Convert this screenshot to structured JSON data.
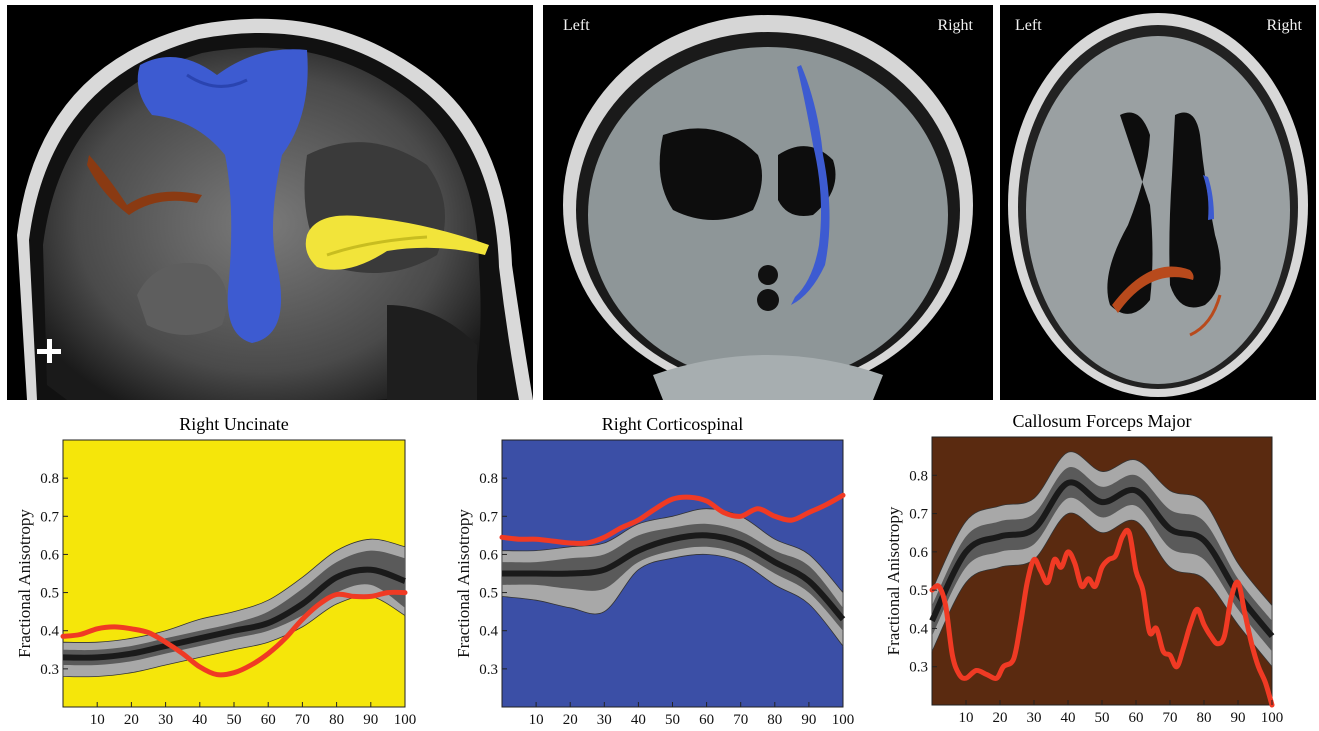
{
  "images": [
    {
      "left_label": "",
      "right_label": ""
    },
    {
      "left_label": "Left",
      "right_label": "Right"
    },
    {
      "left_label": "Left",
      "right_label": "Right"
    }
  ],
  "colors": {
    "uncinate_bg": "#f5e60a",
    "corticospinal_bg": "#3b4fa6",
    "forceps_bg": "#5a2a10",
    "subject_line": "#f03a24",
    "band_outer": "#a8a8a8",
    "band_inner": "#5a5a5a",
    "mean_line": "#1a1a1a"
  },
  "chart_data": [
    {
      "type": "line",
      "title": "Right Uncinate",
      "ylabel": "Fractional Anisotropy",
      "xlabel": "",
      "xlim": [
        0,
        100
      ],
      "ylim": [
        0.2,
        0.9
      ],
      "xticks": [
        10,
        20,
        30,
        40,
        50,
        60,
        70,
        80,
        90,
        100
      ],
      "yticks": [
        0.3,
        0.4,
        0.5,
        0.6,
        0.7,
        0.8
      ],
      "x": [
        0,
        10,
        20,
        30,
        40,
        50,
        60,
        70,
        80,
        90,
        100
      ],
      "mean": [
        0.33,
        0.33,
        0.34,
        0.36,
        0.38,
        0.4,
        0.42,
        0.47,
        0.54,
        0.56,
        0.53
      ],
      "inner_band": [
        [
          0.31,
          0.35
        ],
        [
          0.31,
          0.35
        ],
        [
          0.32,
          0.36
        ],
        [
          0.34,
          0.38
        ],
        [
          0.36,
          0.4
        ],
        [
          0.38,
          0.42
        ],
        [
          0.4,
          0.45
        ],
        [
          0.44,
          0.51
        ],
        [
          0.5,
          0.58
        ],
        [
          0.52,
          0.61
        ],
        [
          0.46,
          0.59
        ]
      ],
      "outer_band": [
        [
          0.28,
          0.37
        ],
        [
          0.28,
          0.37
        ],
        [
          0.29,
          0.38
        ],
        [
          0.31,
          0.4
        ],
        [
          0.33,
          0.43
        ],
        [
          0.35,
          0.45
        ],
        [
          0.37,
          0.48
        ],
        [
          0.41,
          0.54
        ],
        [
          0.47,
          0.61
        ],
        [
          0.49,
          0.64
        ],
        [
          0.44,
          0.62
        ]
      ],
      "subject": [
        [
          0,
          0.385
        ],
        [
          5,
          0.39
        ],
        [
          10,
          0.405
        ],
        [
          15,
          0.41
        ],
        [
          20,
          0.405
        ],
        [
          25,
          0.395
        ],
        [
          30,
          0.37
        ],
        [
          35,
          0.34
        ],
        [
          40,
          0.305
        ],
        [
          45,
          0.285
        ],
        [
          50,
          0.29
        ],
        [
          55,
          0.31
        ],
        [
          60,
          0.34
        ],
        [
          65,
          0.38
        ],
        [
          70,
          0.43
        ],
        [
          75,
          0.47
        ],
        [
          80,
          0.495
        ],
        [
          85,
          0.49
        ],
        [
          90,
          0.49
        ],
        [
          95,
          0.5
        ],
        [
          100,
          0.5
        ]
      ]
    },
    {
      "type": "line",
      "title": "Right Corticospinal",
      "ylabel": "Fractional Anisotropy",
      "xlabel": "",
      "xlim": [
        0,
        100
      ],
      "ylim": [
        0.2,
        0.9
      ],
      "xticks": [
        10,
        20,
        30,
        40,
        50,
        60,
        70,
        80,
        90,
        100
      ],
      "yticks": [
        0.3,
        0.4,
        0.5,
        0.6,
        0.7,
        0.8
      ],
      "x": [
        0,
        10,
        20,
        30,
        40,
        50,
        60,
        70,
        80,
        90,
        100
      ],
      "mean": [
        0.55,
        0.55,
        0.55,
        0.56,
        0.61,
        0.64,
        0.65,
        0.63,
        0.58,
        0.53,
        0.43
      ],
      "inner_band": [
        [
          0.52,
          0.58
        ],
        [
          0.52,
          0.58
        ],
        [
          0.51,
          0.59
        ],
        [
          0.51,
          0.6
        ],
        [
          0.58,
          0.65
        ],
        [
          0.61,
          0.67
        ],
        [
          0.62,
          0.68
        ],
        [
          0.6,
          0.66
        ],
        [
          0.55,
          0.61
        ],
        [
          0.5,
          0.57
        ],
        [
          0.4,
          0.46
        ]
      ],
      "outer_band": [
        [
          0.49,
          0.61
        ],
        [
          0.48,
          0.61
        ],
        [
          0.46,
          0.62
        ],
        [
          0.45,
          0.63
        ],
        [
          0.56,
          0.68
        ],
        [
          0.59,
          0.7
        ],
        [
          0.6,
          0.72
        ],
        [
          0.58,
          0.7
        ],
        [
          0.52,
          0.64
        ],
        [
          0.47,
          0.6
        ],
        [
          0.36,
          0.5
        ]
      ],
      "subject": [
        [
          0,
          0.645
        ],
        [
          5,
          0.64
        ],
        [
          10,
          0.64
        ],
        [
          15,
          0.635
        ],
        [
          20,
          0.63
        ],
        [
          25,
          0.63
        ],
        [
          30,
          0.645
        ],
        [
          35,
          0.67
        ],
        [
          40,
          0.69
        ],
        [
          45,
          0.72
        ],
        [
          50,
          0.745
        ],
        [
          55,
          0.75
        ],
        [
          60,
          0.74
        ],
        [
          65,
          0.71
        ],
        [
          70,
          0.7
        ],
        [
          75,
          0.72
        ],
        [
          80,
          0.7
        ],
        [
          85,
          0.69
        ],
        [
          90,
          0.71
        ],
        [
          95,
          0.73
        ],
        [
          100,
          0.755
        ]
      ]
    },
    {
      "type": "line",
      "title": "Callosum Forceps Major",
      "ylabel": "Fractional Anisotropy",
      "xlabel": "",
      "xlim": [
        0,
        100
      ],
      "ylim": [
        0.2,
        0.9
      ],
      "xticks": [
        10,
        20,
        30,
        40,
        50,
        60,
        70,
        80,
        90,
        100
      ],
      "yticks": [
        0.3,
        0.4,
        0.5,
        0.6,
        0.7,
        0.8
      ],
      "x": [
        0,
        10,
        20,
        30,
        40,
        50,
        60,
        70,
        80,
        90,
        100
      ],
      "mean": [
        0.42,
        0.6,
        0.64,
        0.66,
        0.78,
        0.73,
        0.76,
        0.66,
        0.63,
        0.49,
        0.38
      ],
      "inner_band": [
        [
          0.38,
          0.46
        ],
        [
          0.56,
          0.64
        ],
        [
          0.6,
          0.68
        ],
        [
          0.62,
          0.7
        ],
        [
          0.74,
          0.82
        ],
        [
          0.69,
          0.77
        ],
        [
          0.72,
          0.8
        ],
        [
          0.61,
          0.71
        ],
        [
          0.58,
          0.68
        ],
        [
          0.45,
          0.53
        ],
        [
          0.34,
          0.42
        ]
      ],
      "outer_band": [
        [
          0.34,
          0.5
        ],
        [
          0.52,
          0.68
        ],
        [
          0.56,
          0.72
        ],
        [
          0.58,
          0.74
        ],
        [
          0.7,
          0.86
        ],
        [
          0.65,
          0.81
        ],
        [
          0.68,
          0.84
        ],
        [
          0.56,
          0.76
        ],
        [
          0.53,
          0.73
        ],
        [
          0.41,
          0.57
        ],
        [
          0.3,
          0.46
        ]
      ],
      "subject": [
        [
          0,
          0.5
        ],
        [
          2,
          0.51
        ],
        [
          4,
          0.46
        ],
        [
          6,
          0.33
        ],
        [
          8,
          0.28
        ],
        [
          10,
          0.27
        ],
        [
          13,
          0.29
        ],
        [
          16,
          0.28
        ],
        [
          19,
          0.27
        ],
        [
          21,
          0.3
        ],
        [
          24,
          0.32
        ],
        [
          26,
          0.41
        ],
        [
          28,
          0.52
        ],
        [
          30,
          0.58
        ],
        [
          32,
          0.55
        ],
        [
          34,
          0.52
        ],
        [
          36,
          0.58
        ],
        [
          38,
          0.56
        ],
        [
          40,
          0.6
        ],
        [
          42,
          0.57
        ],
        [
          44,
          0.51
        ],
        [
          46,
          0.53
        ],
        [
          48,
          0.51
        ],
        [
          50,
          0.56
        ],
        [
          52,
          0.58
        ],
        [
          54,
          0.59
        ],
        [
          56,
          0.64
        ],
        [
          58,
          0.65
        ],
        [
          60,
          0.55
        ],
        [
          62,
          0.5
        ],
        [
          64,
          0.39
        ],
        [
          66,
          0.4
        ],
        [
          68,
          0.34
        ],
        [
          70,
          0.33
        ],
        [
          72,
          0.3
        ],
        [
          74,
          0.35
        ],
        [
          76,
          0.41
        ],
        [
          78,
          0.45
        ],
        [
          80,
          0.41
        ],
        [
          82,
          0.38
        ],
        [
          84,
          0.36
        ],
        [
          86,
          0.38
        ],
        [
          88,
          0.48
        ],
        [
          90,
          0.52
        ],
        [
          92,
          0.44
        ],
        [
          94,
          0.36
        ],
        [
          96,
          0.3
        ],
        [
          98,
          0.26
        ],
        [
          100,
          0.2
        ]
      ]
    }
  ]
}
